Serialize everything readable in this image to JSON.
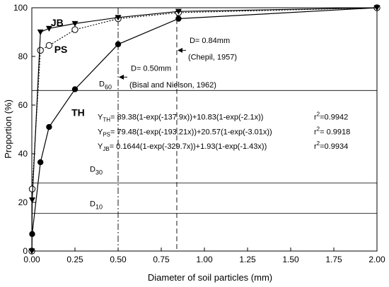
{
  "chart_data": {
    "type": "line",
    "title": "",
    "xlabel": "Diameter of soil particles (mm)",
    "ylabel": "Proportion (%)",
    "xlim": [
      0,
      2
    ],
    "ylim": [
      0,
      100
    ],
    "xticks": [
      "0.00",
      "0.25",
      "0.50",
      "0.75",
      "1.00",
      "1.25",
      "1.50",
      "1.75",
      "2.00"
    ],
    "yticks": [
      "0",
      "20",
      "40",
      "60",
      "80",
      "100"
    ],
    "grid": false,
    "series": [
      {
        "name": "TH",
        "marker": "filled-circle",
        "line": "solid",
        "x": [
          0.0,
          0.002,
          0.05,
          0.1,
          0.25,
          0.5,
          0.85,
          2.0
        ],
        "y": [
          0,
          7,
          36.5,
          51,
          66.5,
          85,
          95.5,
          100
        ]
      },
      {
        "name": "PS",
        "marker": "open-circle",
        "line": "dotted",
        "x": [
          0.0,
          0.002,
          0.05,
          0.1,
          0.25,
          0.5,
          0.85,
          2.0
        ],
        "y": [
          0,
          25.5,
          82.5,
          84.5,
          91,
          95.5,
          98,
          100
        ]
      },
      {
        "name": "JB",
        "marker": "triangle-down",
        "line": "solid",
        "x": [
          0.0,
          0.002,
          0.05,
          0.1,
          0.25,
          0.5,
          0.85,
          2.0
        ],
        "y": [
          0,
          21,
          90,
          91.5,
          93.5,
          96,
          98.5,
          100
        ]
      }
    ],
    "reference_lines": {
      "horizontal": [
        {
          "label": "D",
          "sub": "60",
          "y": 66
        },
        {
          "label": "D",
          "sub": "30",
          "y": 28
        },
        {
          "label": "D",
          "sub": "10",
          "y": 15.5
        }
      ],
      "vertical": [
        {
          "x": 0.5,
          "text1": "D= 0.50mm",
          "text2": "(Bisal and Nielson, 1962)"
        },
        {
          "x": 0.84,
          "text1": "D= 0.84mm",
          "text2": "(Chepil, 1957)"
        }
      ]
    },
    "equations": [
      {
        "lhs": "Y",
        "sub": "TH",
        "rhs": "= 89.38(1-exp(-137.9x))+10.83(1-exp(-2.1x))",
        "r2_prefix": "r",
        "r2_sup": "2",
        "r2_value": "=0.9942"
      },
      {
        "lhs": "Y",
        "sub": "PS",
        "rhs": "= 79.48(1-exp(-193.21x))+20.57(1-exp(-3.01x))",
        "r2_prefix": "r",
        "r2_sup": "2",
        "r2_value": "= 0.9918"
      },
      {
        "lhs": "Y",
        "sub": "JB",
        "rhs": "= 0.1644(1-exp(-329.7x))+1.93(1-exp(-1.43x))",
        "r2_prefix": "r",
        "r2_sup": "2",
        "r2_value": "=0.9934"
      }
    ]
  }
}
